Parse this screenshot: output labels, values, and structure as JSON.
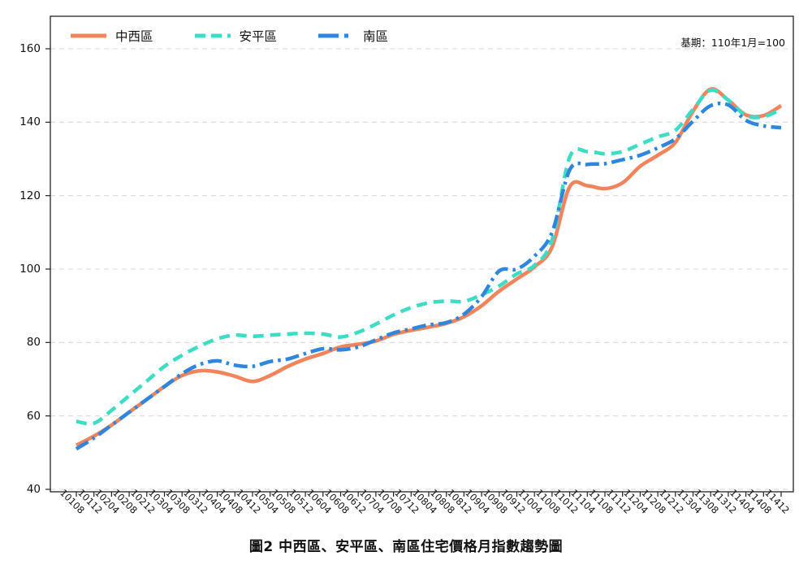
{
  "title": "圖2 中西區、安平區、南區住宅價格月指數趨勢圖",
  "base_note": "基期：110年1月=100",
  "axes": {
    "y_ticks": [
      40,
      60,
      80,
      100,
      120,
      140,
      160
    ],
    "y_min": 40,
    "y_max": 160,
    "grid": "horizontal-dashed"
  },
  "chart_data": {
    "type": "line",
    "title": "圖2 中西區、安平區、南區住宅價格月指數趨勢圖",
    "xlabel": "",
    "ylabel": "",
    "ylim": [
      40,
      160
    ],
    "legend_position": "top-left-inside",
    "annotation": "基期：110年1月=100",
    "categories": [
      "10108",
      "10112",
      "10204",
      "10208",
      "10212",
      "10304",
      "10308",
      "10312",
      "10404",
      "10408",
      "10412",
      "10504",
      "10508",
      "10512",
      "10604",
      "10608",
      "10612",
      "10704",
      "10708",
      "10712",
      "10804",
      "10808",
      "10812",
      "10904",
      "10908",
      "10912",
      "11004",
      "11008",
      "11012",
      "11104",
      "11108",
      "11112",
      "11204",
      "11208",
      "11212",
      "11304",
      "11308",
      "11312",
      "11404",
      "11408",
      "11412"
    ],
    "series": [
      {
        "name": "中西區",
        "color": "#F2845C",
        "style": "solid",
        "values": [
          52,
          54.5,
          57.5,
          61,
          64.5,
          68,
          71,
          72.3,
          72,
          70.8,
          69.4,
          71,
          73.5,
          75.5,
          77,
          78.8,
          79.5,
          80.4,
          82.2,
          83.3,
          84.2,
          85.2,
          87,
          90,
          94,
          97.3,
          100.6,
          106,
          122.4,
          122.7,
          121.9,
          123.5,
          128,
          131,
          134.5,
          143,
          149,
          146,
          142,
          141.8,
          144.5
        ]
      },
      {
        "name": "安平區",
        "color": "#3DDCC4",
        "style": "dashed",
        "values": [
          58.5,
          58,
          61.5,
          65.5,
          69.5,
          73.5,
          76.5,
          79,
          81,
          82,
          81.7,
          82,
          82.3,
          82.5,
          82.3,
          81.5,
          82.8,
          85,
          87.5,
          89.5,
          90.8,
          91.3,
          91.2,
          93,
          95.4,
          98.7,
          101,
          108,
          130.5,
          132,
          131.4,
          132,
          134,
          136,
          137.8,
          143.5,
          148.7,
          146,
          141.8,
          141.5,
          143.5
        ]
      },
      {
        "name": "南區",
        "color": "#2E86DE",
        "style": "dashdot",
        "values": [
          51,
          54,
          57.5,
          61,
          64.5,
          68,
          71.5,
          74,
          75,
          73.8,
          73.5,
          74.8,
          75.5,
          77,
          78.3,
          78,
          78.8,
          80.7,
          82.6,
          83.7,
          84.8,
          85.4,
          87.7,
          92.5,
          99.5,
          100,
          103.5,
          110,
          127,
          128.5,
          128.7,
          129.8,
          131,
          133,
          135.5,
          140.3,
          144.5,
          144.7,
          140.5,
          139,
          138.5
        ]
      }
    ]
  }
}
